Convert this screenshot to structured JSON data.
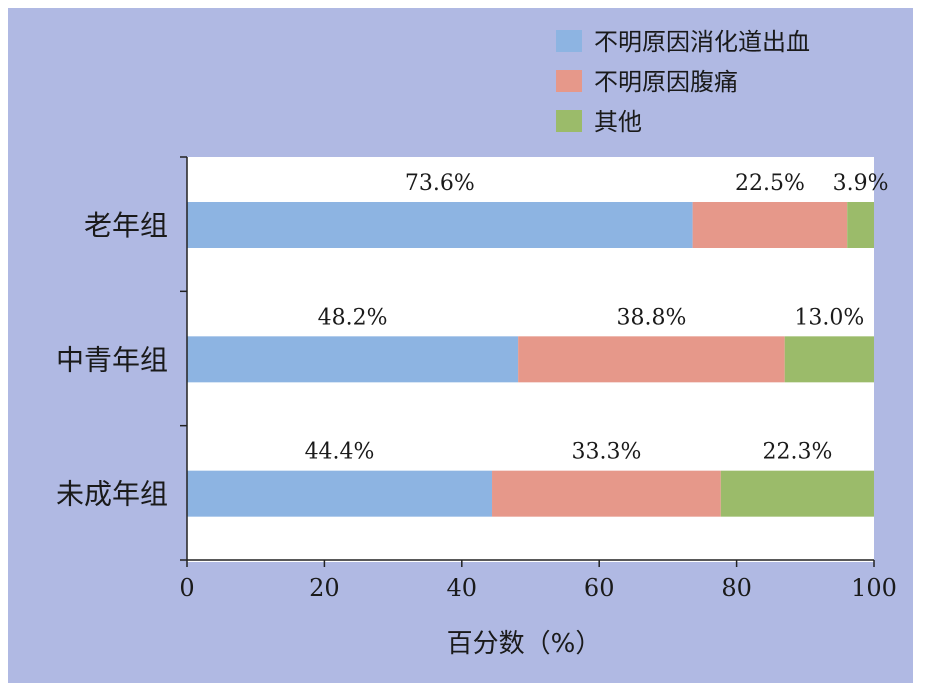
{
  "chart_data": {
    "type": "bar",
    "orientation": "horizontal",
    "stacked": true,
    "categories": [
      "老年组",
      "中青年组",
      "未成年组"
    ],
    "series": [
      {
        "name": "不明原因消化道出血",
        "color": "#8db4e2",
        "values": [
          73.6,
          48.2,
          44.4
        ],
        "labels": [
          "73.6%",
          "48.2%",
          "44.4%"
        ]
      },
      {
        "name": "不明原因腹痛",
        "color": "#e6988a",
        "values": [
          22.5,
          38.8,
          33.3
        ],
        "labels": [
          "22.5%",
          "38.8%",
          "33.3%"
        ]
      },
      {
        "name": "其他",
        "color": "#9bbb6a",
        "values": [
          3.9,
          13.0,
          22.3
        ],
        "labels": [
          "3.9%",
          "13.0%",
          "22.3%"
        ]
      }
    ],
    "xlim": [
      0,
      100
    ],
    "xticks": [
      "0",
      "20",
      "40",
      "60",
      "80",
      "100"
    ],
    "xlabel": "百分数（%）",
    "ylabel": "",
    "grid": false,
    "legend": "top-right",
    "background_color": "#b0b9e3",
    "plot_color": "#ffffff"
  }
}
